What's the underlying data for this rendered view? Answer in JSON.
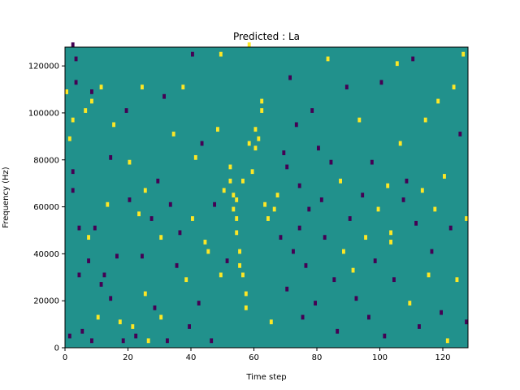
{
  "chart_data": {
    "type": "heatmap",
    "title": "Predicted : La",
    "xlabel": "Time step",
    "ylabel": "Frequency (Hz)",
    "xlim": [
      0,
      128
    ],
    "ylim": [
      0,
      128000
    ],
    "x_ticks": [
      0,
      20,
      40,
      60,
      80,
      100,
      120
    ],
    "y_ticks": [
      0,
      20000,
      40000,
      60000,
      80000,
      100000,
      120000
    ],
    "colormap": {
      "background": "#21918c",
      "high": "#fde725",
      "low": "#440154"
    },
    "background_value": 0,
    "cell_height_hz": 2000,
    "cells_note": "cells list [time_step, frequency_hz, value] with value 1 = high (yellow), -1 = low (purple); all other cells are 0 (teal)",
    "cells": [
      [
        0,
        108000,
        1
      ],
      [
        0,
        108000,
        1
      ],
      [
        1,
        88000,
        1
      ],
      [
        1,
        4000,
        -1
      ],
      [
        2,
        128000,
        -1
      ],
      [
        2,
        96000,
        1
      ],
      [
        2,
        74000,
        -1
      ],
      [
        2,
        66000,
        -1
      ],
      [
        3,
        122000,
        -1
      ],
      [
        3,
        112000,
        -1
      ],
      [
        4,
        50000,
        -1
      ],
      [
        4,
        30000,
        -1
      ],
      [
        5,
        6000,
        -1
      ],
      [
        6,
        100000,
        1
      ],
      [
        7,
        36000,
        -1
      ],
      [
        7,
        46000,
        1
      ],
      [
        8,
        2000,
        -1
      ],
      [
        8,
        108000,
        -1
      ],
      [
        8,
        104000,
        1
      ],
      [
        9,
        50000,
        -1
      ],
      [
        10,
        12000,
        1
      ],
      [
        11,
        110000,
        1
      ],
      [
        11,
        26000,
        -1
      ],
      [
        12,
        30000,
        -1
      ],
      [
        13,
        60000,
        1
      ],
      [
        14,
        80000,
        -1
      ],
      [
        14,
        20000,
        -1
      ],
      [
        15,
        94000,
        1
      ],
      [
        16,
        38000,
        -1
      ],
      [
        17,
        10000,
        1
      ],
      [
        18,
        2000,
        -1
      ],
      [
        19,
        100000,
        -1
      ],
      [
        20,
        78000,
        1
      ],
      [
        20,
        62000,
        -1
      ],
      [
        21,
        8000,
        1
      ],
      [
        22,
        4000,
        -1
      ],
      [
        23,
        56000,
        1
      ],
      [
        24,
        110000,
        1
      ],
      [
        24,
        38000,
        -1
      ],
      [
        25,
        66000,
        1
      ],
      [
        25,
        22000,
        1
      ],
      [
        26,
        2000,
        1
      ],
      [
        27,
        54000,
        -1
      ],
      [
        28,
        16000,
        -1
      ],
      [
        29,
        70000,
        -1
      ],
      [
        30,
        46000,
        1
      ],
      [
        30,
        12000,
        1
      ],
      [
        31,
        106000,
        -1
      ],
      [
        32,
        2000,
        -1
      ],
      [
        33,
        60000,
        -1
      ],
      [
        34,
        90000,
        1
      ],
      [
        35,
        34000,
        -1
      ],
      [
        36,
        48000,
        -1
      ],
      [
        37,
        110000,
        1
      ],
      [
        38,
        28000,
        1
      ],
      [
        39,
        8000,
        -1
      ],
      [
        40,
        124000,
        -1
      ],
      [
        40,
        54000,
        1
      ],
      [
        41,
        80000,
        1
      ],
      [
        42,
        18000,
        -1
      ],
      [
        43,
        86000,
        -1
      ],
      [
        44,
        44000,
        1
      ],
      [
        45,
        40000,
        1
      ],
      [
        46,
        2000,
        -1
      ],
      [
        47,
        60000,
        -1
      ],
      [
        48,
        92000,
        1
      ],
      [
        49,
        124000,
        1
      ],
      [
        49,
        30000,
        1
      ],
      [
        50,
        66000,
        1
      ],
      [
        51,
        36000,
        -1
      ],
      [
        52,
        76000,
        1
      ],
      [
        52,
        70000,
        1
      ],
      [
        53,
        64000,
        1
      ],
      [
        53,
        58000,
        1
      ],
      [
        54,
        62000,
        1
      ],
      [
        54,
        54000,
        1
      ],
      [
        54,
        48000,
        1
      ],
      [
        55,
        40000,
        1
      ],
      [
        55,
        34000,
        1
      ],
      [
        56,
        30000,
        1
      ],
      [
        56,
        70000,
        1
      ],
      [
        57,
        22000,
        1
      ],
      [
        57,
        16000,
        1
      ],
      [
        58,
        128000,
        1
      ],
      [
        58,
        86000,
        1
      ],
      [
        59,
        74000,
        1
      ],
      [
        60,
        92000,
        1
      ],
      [
        60,
        84000,
        1
      ],
      [
        61,
        88000,
        1
      ],
      [
        62,
        100000,
        1
      ],
      [
        62,
        104000,
        1
      ],
      [
        63,
        60000,
        1
      ],
      [
        64,
        54000,
        1
      ],
      [
        65,
        10000,
        1
      ],
      [
        66,
        58000,
        1
      ],
      [
        67,
        64000,
        1
      ],
      [
        68,
        46000,
        -1
      ],
      [
        69,
        82000,
        -1
      ],
      [
        70,
        76000,
        -1
      ],
      [
        70,
        24000,
        -1
      ],
      [
        71,
        114000,
        -1
      ],
      [
        72,
        40000,
        -1
      ],
      [
        73,
        94000,
        -1
      ],
      [
        74,
        68000,
        -1
      ],
      [
        74,
        50000,
        -1
      ],
      [
        75,
        12000,
        -1
      ],
      [
        76,
        34000,
        -1
      ],
      [
        77,
        58000,
        -1
      ],
      [
        78,
        100000,
        -1
      ],
      [
        79,
        18000,
        -1
      ],
      [
        80,
        84000,
        -1
      ],
      [
        81,
        62000,
        -1
      ],
      [
        82,
        46000,
        -1
      ],
      [
        83,
        122000,
        1
      ],
      [
        84,
        78000,
        -1
      ],
      [
        85,
        28000,
        -1
      ],
      [
        86,
        6000,
        -1
      ],
      [
        87,
        70000,
        1
      ],
      [
        88,
        40000,
        1
      ],
      [
        89,
        110000,
        -1
      ],
      [
        90,
        54000,
        -1
      ],
      [
        91,
        32000,
        1
      ],
      [
        92,
        20000,
        -1
      ],
      [
        93,
        96000,
        1
      ],
      [
        94,
        64000,
        -1
      ],
      [
        95,
        46000,
        1
      ],
      [
        96,
        12000,
        -1
      ],
      [
        97,
        78000,
        -1
      ],
      [
        98,
        36000,
        -1
      ],
      [
        99,
        58000,
        1
      ],
      [
        100,
        112000,
        -1
      ],
      [
        101,
        4000,
        -1
      ],
      [
        102,
        68000,
        1
      ],
      [
        103,
        48000,
        1
      ],
      [
        103,
        44000,
        1
      ],
      [
        104,
        28000,
        -1
      ],
      [
        105,
        120000,
        1
      ],
      [
        106,
        86000,
        1
      ],
      [
        107,
        62000,
        -1
      ],
      [
        108,
        70000,
        -1
      ],
      [
        109,
        18000,
        1
      ],
      [
        110,
        122000,
        -1
      ],
      [
        111,
        52000,
        -1
      ],
      [
        112,
        8000,
        -1
      ],
      [
        113,
        66000,
        1
      ],
      [
        114,
        96000,
        1
      ],
      [
        115,
        30000,
        1
      ],
      [
        116,
        40000,
        -1
      ],
      [
        117,
        58000,
        1
      ],
      [
        118,
        104000,
        1
      ],
      [
        119,
        14000,
        -1
      ],
      [
        120,
        72000,
        1
      ],
      [
        121,
        2000,
        1
      ],
      [
        122,
        50000,
        -1
      ],
      [
        123,
        110000,
        1
      ],
      [
        124,
        28000,
        1
      ],
      [
        125,
        90000,
        -1
      ],
      [
        126,
        124000,
        1
      ],
      [
        127,
        10000,
        -1
      ],
      [
        127,
        54000,
        1
      ]
    ]
  }
}
